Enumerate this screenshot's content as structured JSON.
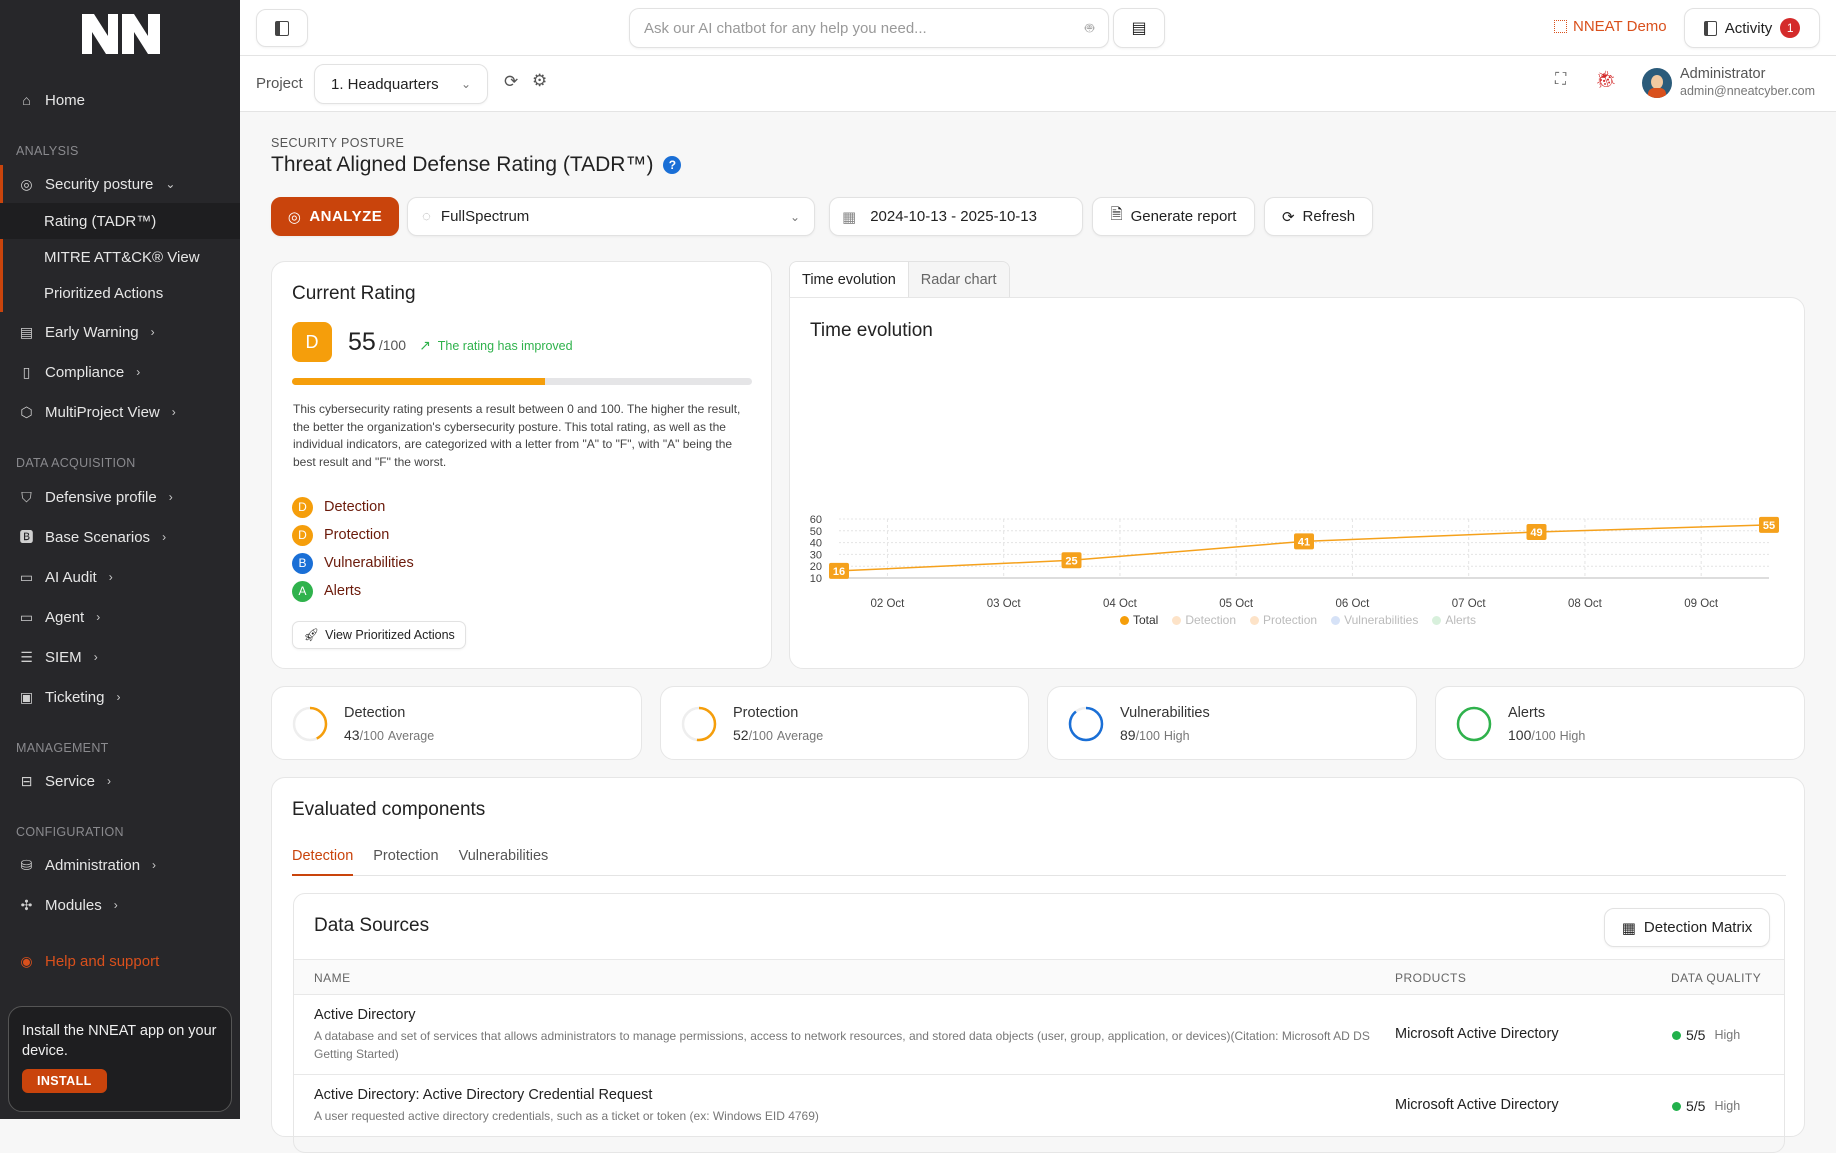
{
  "sidebar": {
    "logo_text": "NN",
    "home": "Home",
    "sections": {
      "analysis": "ANALYSIS",
      "data_acquisition": "DATA ACQUISITION",
      "management": "MANAGEMENT",
      "configuration": "CONFIGURATION"
    },
    "security_posture": "Security posture",
    "sub": [
      "Rating (TADR™)",
      "MITRE ATT&CK® View",
      "Prioritized Actions"
    ],
    "early_warning": "Early Warning",
    "compliance": "Compliance",
    "multiproject": "MultiProject View",
    "defensive_profile": "Defensive profile",
    "base_scenarios": "Base Scenarios",
    "ai_audit": "AI Audit",
    "agent": "Agent",
    "siem": "SIEM",
    "ticketing": "Ticketing",
    "service": "Service",
    "administration": "Administration",
    "modules": "Modules",
    "help": "Help and support",
    "install_text": "Install the NNEAT app on your device.",
    "install_button": "INSTALL"
  },
  "topbar": {
    "chat_placeholder": "Ask our AI chatbot for any help you need...",
    "demo_label": "NNEAT Demo",
    "activity_label": "Activity",
    "activity_count": "1"
  },
  "subbar": {
    "project_label": "Project",
    "project_value": "1. Headquarters",
    "user_name": "Administrator",
    "user_email": "admin@nneatcyber.com"
  },
  "page": {
    "eyebrow": "SECURITY POSTURE",
    "title": "Threat Aligned Defense Rating (TADR™)",
    "analyze": "ANALYZE",
    "scope": "FullSpectrum",
    "date_range": "2024-10-13 - 2025-10-13",
    "generate_report": "Generate report",
    "refresh": "Refresh"
  },
  "rating": {
    "title": "Current Rating",
    "grade": "D",
    "score": "55",
    "max": "/100",
    "progress": 55,
    "trend": "The rating has improved",
    "description": "This cybersecurity rating presents a result between 0 and 100. The higher the result, the better the organization's cybersecurity posture. This total rating, as well as the individual indicators, are categorized with a letter from \"A\" to \"F\", with \"A\" being the best result and \"F\" the worst.",
    "indicators": [
      {
        "grade": "D",
        "label": "Detection",
        "color": "#f59e0b"
      },
      {
        "grade": "D",
        "label": "Protection",
        "color": "#f59e0b"
      },
      {
        "grade": "B",
        "label": "Vulnerabilities",
        "color": "#1a6fd6"
      },
      {
        "grade": "A",
        "label": "Alerts",
        "color": "#2fb24c"
      }
    ],
    "view_actions": "View Prioritized Actions"
  },
  "chart_tabs": [
    "Time evolution",
    "Radar chart"
  ],
  "chart_data": {
    "type": "line",
    "title": "Time evolution",
    "x": [
      "2025-10-01T14:00",
      "2025-10-03T14:00",
      "2025-10-05T14:00",
      "2025-10-07T14:00",
      "2025-10-09T14:00"
    ],
    "series": [
      {
        "name": "Total",
        "values": [
          16,
          25,
          41,
          49,
          55
        ],
        "color": "#f5a11c"
      }
    ],
    "legend": [
      {
        "name": "Total",
        "color": "#f59e0b",
        "active": true
      },
      {
        "name": "Detection",
        "color": "#fde3c8",
        "active": false
      },
      {
        "name": "Protection",
        "color": "#fde3c8",
        "active": false
      },
      {
        "name": "Vulnerabilities",
        "color": "#d6e2f7",
        "active": false
      },
      {
        "name": "Alerts",
        "color": "#d8f0dc",
        "active": false
      }
    ],
    "x_ticks": [
      "02 Oct",
      "03 Oct",
      "04 Oct",
      "05 Oct",
      "06 Oct",
      "07 Oct",
      "08 Oct",
      "09 Oct"
    ],
    "y_ticks": [
      10,
      20,
      30,
      40,
      50,
      60
    ],
    "ylim": [
      10,
      60
    ],
    "grid": true,
    "legend_position": "bottom"
  },
  "stats": [
    {
      "label": "Detection",
      "value": "43",
      "max": "/100",
      "level": "Average",
      "color": "#f59e0b"
    },
    {
      "label": "Protection",
      "value": "52",
      "max": "/100",
      "level": "Average",
      "color": "#f59e0b"
    },
    {
      "label": "Vulnerabilities",
      "value": "89",
      "max": "/100",
      "level": "High",
      "color": "#1a6fd6"
    },
    {
      "label": "Alerts",
      "value": "100",
      "max": "/100",
      "level": "High",
      "color": "#2fb24c"
    }
  ],
  "components": {
    "title": "Evaluated components",
    "tabs": [
      "Detection",
      "Protection",
      "Vulnerabilities"
    ],
    "panel_title": "Data Sources",
    "matrix_button": "Detection Matrix",
    "columns": [
      "NAME",
      "PRODUCTS",
      "DATA QUALITY"
    ],
    "rows": [
      {
        "name": "Active Directory",
        "desc": "A database and set of services that allows administrators to manage permissions, access to network resources, and stored data objects (user, group, application, or devices)(Citation: Microsoft AD DS Getting Started)",
        "product": "Microsoft Active Directory",
        "quality": "5/5",
        "level": "High"
      },
      {
        "name": "Active Directory: Active Directory Credential Request",
        "desc": "A user requested active directory credentials, such as a ticket or token (ex: Windows EID 4769)",
        "product": "Microsoft Active Directory",
        "quality": "5/5",
        "level": "High"
      }
    ]
  }
}
